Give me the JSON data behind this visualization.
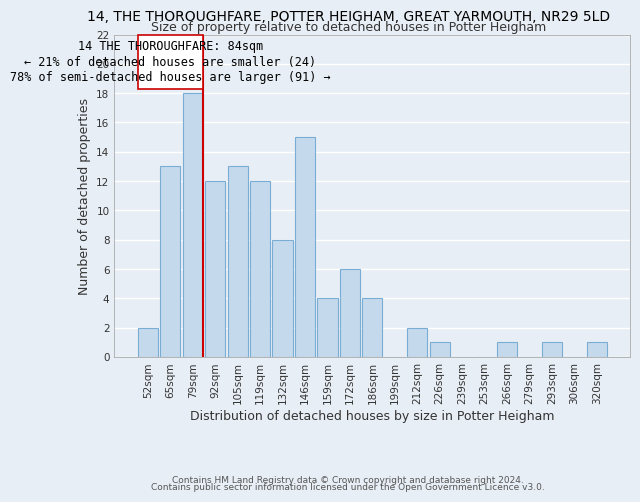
{
  "title": "14, THE THOROUGHFARE, POTTER HEIGHAM, GREAT YARMOUTH, NR29 5LD",
  "subtitle": "Size of property relative to detached houses in Potter Heigham",
  "xlabel": "Distribution of detached houses by size in Potter Heigham",
  "ylabel": "Number of detached properties",
  "footer_line1": "Contains HM Land Registry data © Crown copyright and database right 2024.",
  "footer_line2": "Contains public sector information licensed under the Open Government Licence v3.0.",
  "bar_labels": [
    "52sqm",
    "65sqm",
    "79sqm",
    "92sqm",
    "105sqm",
    "119sqm",
    "132sqm",
    "146sqm",
    "159sqm",
    "172sqm",
    "186sqm",
    "199sqm",
    "212sqm",
    "226sqm",
    "239sqm",
    "253sqm",
    "266sqm",
    "279sqm",
    "293sqm",
    "306sqm",
    "320sqm"
  ],
  "bar_values": [
    2,
    13,
    18,
    12,
    13,
    12,
    8,
    15,
    4,
    6,
    4,
    0,
    2,
    1,
    0,
    0,
    1,
    0,
    1,
    0,
    1
  ],
  "bar_color": "#c5d9ed",
  "bar_edge_color": "#7aadd4",
  "subject_line_color": "#cc0000",
  "annotation_line1": "14 THE THOROUGHFARE: 84sqm",
  "annotation_line2": "← 21% of detached houses are smaller (24)",
  "annotation_line3": "78% of semi-detached houses are larger (91) →",
  "ylim": [
    0,
    22
  ],
  "yticks": [
    0,
    2,
    4,
    6,
    8,
    10,
    12,
    14,
    16,
    18,
    20,
    22
  ],
  "background_color": "#e8eef5",
  "grid_color": "#ffffff",
  "title_fontsize": 10,
  "subtitle_fontsize": 9,
  "axis_label_fontsize": 9,
  "tick_fontsize": 7.5,
  "annotation_fontsize": 8.5,
  "footer_fontsize": 6.5
}
